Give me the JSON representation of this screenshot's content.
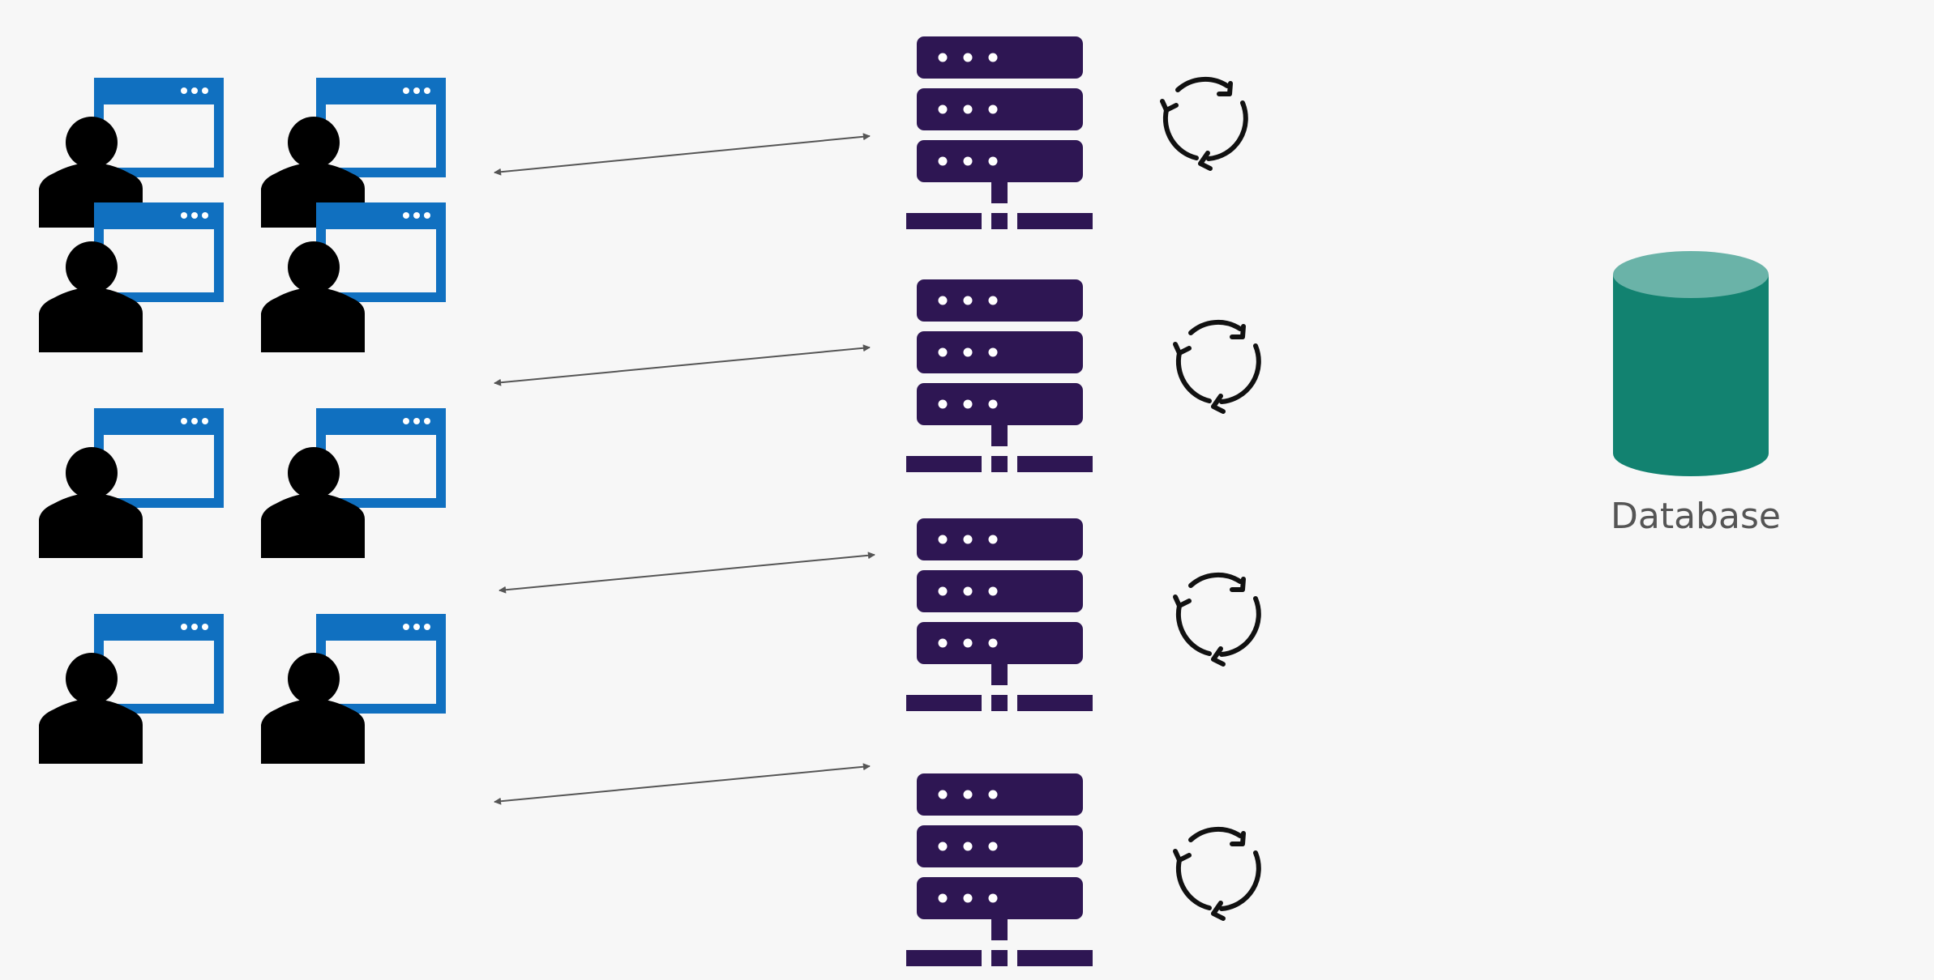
{
  "colors": {
    "background": "#f7f7f7",
    "window_blue": "#1070c0",
    "person": "#000000",
    "server": "#2e1653",
    "server_dot": "#ffffff",
    "sync": "#111111",
    "arrow": "#555555",
    "db_body": "#128270",
    "db_top": "#6ab3a8",
    "label": "#555555"
  },
  "icons": {
    "client": "person-with-browser-window-icon",
    "server": "server-rack-icon",
    "sync": "refresh-cycle-icon",
    "connection": "bidirectional-arrow-icon",
    "database": "database-cylinder-icon"
  },
  "database": {
    "label": "Database"
  }
}
